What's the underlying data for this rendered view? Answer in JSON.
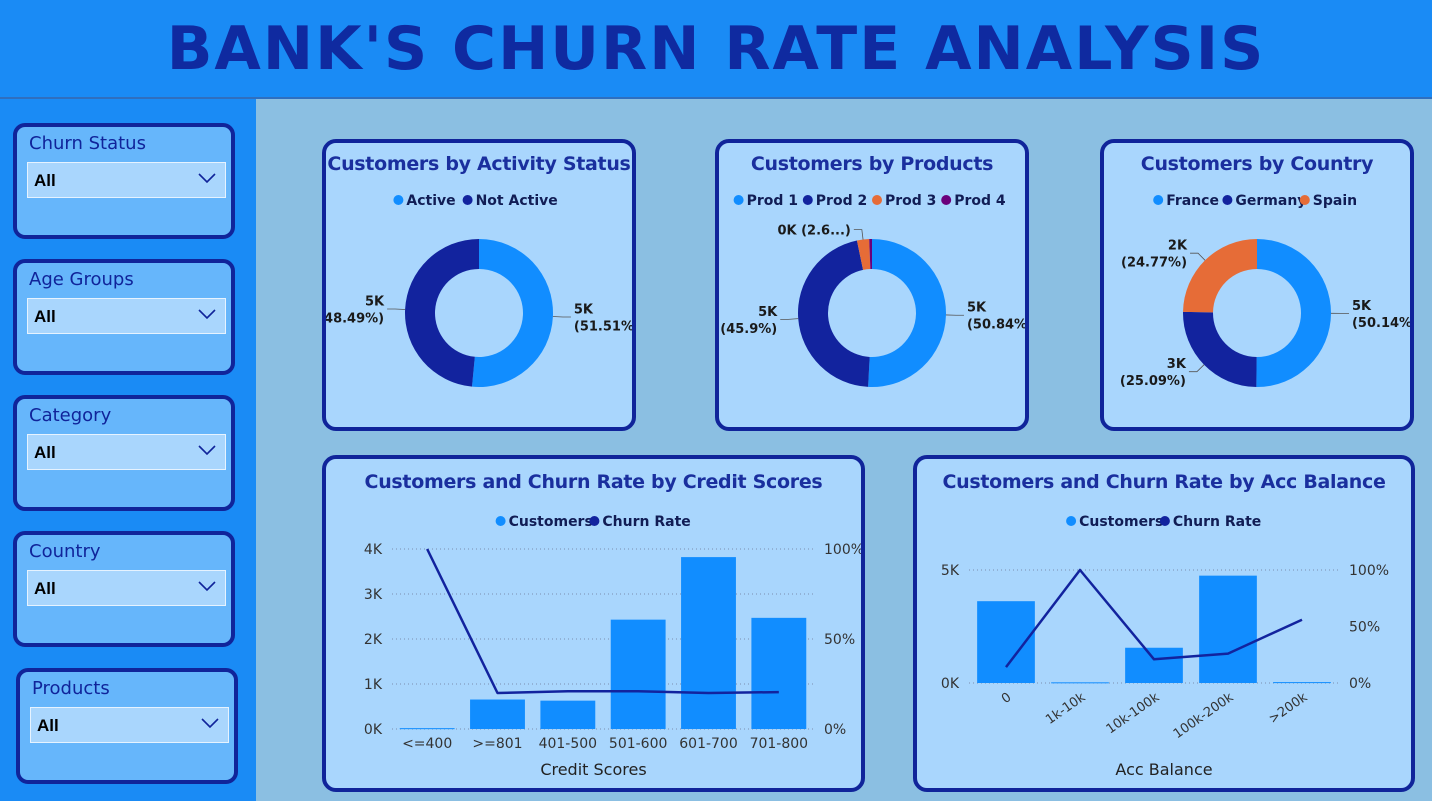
{
  "header": {
    "title": "BANK'S CHURN RATE ANALYSIS"
  },
  "colors": {
    "light_blue": "#118dff",
    "dark_blue": "#12239e",
    "orange": "#e66c37",
    "purple": "#6b007b",
    "header_bg": "#1a8bf5",
    "panel_bg": "#8bbfe2",
    "card_bg": "#a9d6fd"
  },
  "filters": [
    {
      "label": "Churn Status",
      "value": "All",
      "icon": "chevron-down-icon"
    },
    {
      "label": "Age Groups",
      "value": "All",
      "icon": "chevron-down-icon"
    },
    {
      "label": "Category",
      "value": "All",
      "icon": "chevron-down-icon"
    },
    {
      "label": "Country",
      "value": "All",
      "icon": "chevron-down-icon"
    },
    {
      "label": "Products",
      "value": "All",
      "icon": "chevron-down-icon"
    }
  ],
  "chart_data": [
    {
      "type": "pie",
      "title": "Customers by Activity Status",
      "legend_position": "top",
      "categories": [
        "Active",
        "Not Active"
      ],
      "values": [
        51.51,
        48.49
      ],
      "colors": [
        "#118dff",
        "#12239e"
      ],
      "data_labels": [
        [
          "5K",
          "(51.51%)"
        ],
        [
          "5K",
          "(48.49%)"
        ]
      ]
    },
    {
      "type": "pie",
      "title": "Customers by Products",
      "legend_position": "top",
      "categories": [
        "Prod 1",
        "Prod 2",
        "Prod 3",
        "Prod 4"
      ],
      "values": [
        50.84,
        45.9,
        2.66,
        0.6
      ],
      "colors": [
        "#118dff",
        "#12239e",
        "#e66c37",
        "#6b007b"
      ],
      "data_labels": [
        [
          "5K",
          "(50.84%)"
        ],
        [
          "5K",
          "(45.9%)"
        ],
        [
          "0K (2.6...)"
        ],
        []
      ]
    },
    {
      "type": "pie",
      "title": "Customers by Country",
      "legend_position": "top",
      "categories": [
        "France",
        "Germany",
        "Spain"
      ],
      "values": [
        50.14,
        25.09,
        24.77
      ],
      "colors": [
        "#118dff",
        "#12239e",
        "#e66c37"
      ],
      "data_labels": [
        [
          "5K",
          "(50.14%)"
        ],
        [
          "3K",
          "(25.09%)"
        ],
        [
          "2K",
          "(24.77%)"
        ]
      ]
    },
    {
      "type": "bar",
      "title": "Customers and Churn Rate by Credit Scores",
      "legend_position": "top",
      "xlabel": "Credit Scores",
      "categories": [
        "<=400",
        ">=801",
        "401-500",
        "501-600",
        "601-700",
        "701-800"
      ],
      "series": [
        {
          "name": "Customers",
          "type": "bar",
          "axis": "left",
          "values": [
            19,
            655,
            630,
            2430,
            3820,
            2470
          ]
        },
        {
          "name": "Churn Rate",
          "type": "line",
          "axis": "right",
          "values": [
            100,
            20,
            21,
            21,
            20,
            20.5
          ]
        }
      ],
      "y_left": {
        "ylim": [
          0,
          4000
        ],
        "ticks": [
          "0K",
          "1K",
          "2K",
          "3K",
          "4K"
        ]
      },
      "y_right": {
        "ylim": [
          0,
          100
        ],
        "ticks": [
          "0%",
          "50%",
          "100%"
        ]
      },
      "grid": true
    },
    {
      "type": "bar",
      "title": "Customers and Churn Rate by Acc Balance",
      "legend_position": "top",
      "xlabel": "Acc Balance",
      "categories": [
        "0",
        "1k-10k",
        "10k-100k",
        "100k-200k",
        ">200k"
      ],
      "series": [
        {
          "name": "Customers",
          "type": "bar",
          "axis": "left",
          "values": [
            3620,
            30,
            1560,
            4750,
            40
          ]
        },
        {
          "name": "Churn Rate",
          "type": "line",
          "axis": "right",
          "values": [
            14,
            100,
            21,
            26,
            56
          ]
        }
      ],
      "y_left": {
        "ylim": [
          0,
          5000
        ],
        "ticks": [
          "0K",
          "5K"
        ]
      },
      "y_right": {
        "ylim": [
          0,
          100
        ],
        "ticks": [
          "0%",
          "50%",
          "100%"
        ]
      },
      "grid": true
    }
  ]
}
